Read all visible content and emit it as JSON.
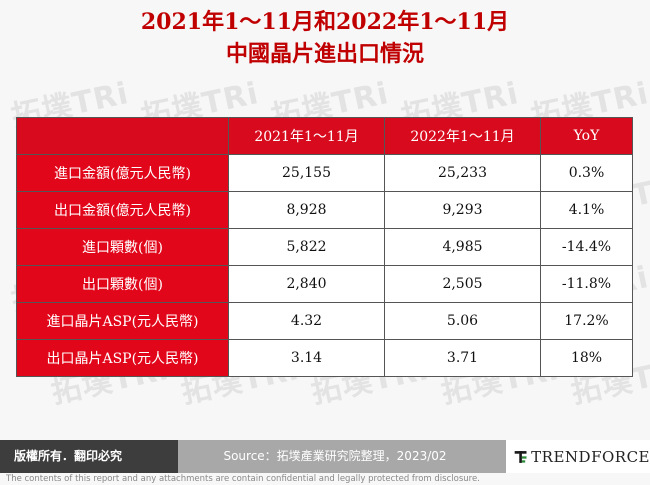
{
  "title": {
    "line1": "2021年1～11月和2022年1～11月",
    "line2": "中國晶片進出口情況"
  },
  "table": {
    "headers": [
      "",
      "2021年1～11月",
      "2022年1～11月",
      "YoY"
    ],
    "rows": [
      {
        "label": "進口金額(億元人民幣)",
        "v2021": "25,155",
        "v2022": "25,233",
        "yoy": "0.3%"
      },
      {
        "label": "出口金額(億元人民幣)",
        "v2021": "8,928",
        "v2022": "9,293",
        "yoy": "4.1%"
      },
      {
        "label": "進口顆數(個)",
        "v2021": "5,822",
        "v2022": "4,985",
        "yoy": "-14.4%"
      },
      {
        "label": "出口顆數(個)",
        "v2021": "2,840",
        "v2022": "2,505",
        "yoy": "-11.8%"
      },
      {
        "label": "進口晶片ASP(元人民幣)",
        "v2021": "4.32",
        "v2022": "5.06",
        "yoy": "17.2%"
      },
      {
        "label": "出口晶片ASP(元人民幣)",
        "v2021": "3.14",
        "v2022": "3.71",
        "yoy": "18%"
      }
    ]
  },
  "watermark": {
    "text": "拓墣TRi"
  },
  "footer": {
    "rights": "版權所有．翻印必究",
    "source": "Source：拓墣產業研究院整理，2023/02",
    "logo": "TRENDFORCE",
    "disclaimer": "The contents of this report and any attachments are contain confidential and legally protected from disclosure."
  },
  "colors": {
    "title": "#c00000",
    "header_bg": "#d80b1e",
    "label_bg": "#e2061a",
    "footer_dark": "#3d3d3d",
    "footer_grey": "#a8a8a8"
  }
}
